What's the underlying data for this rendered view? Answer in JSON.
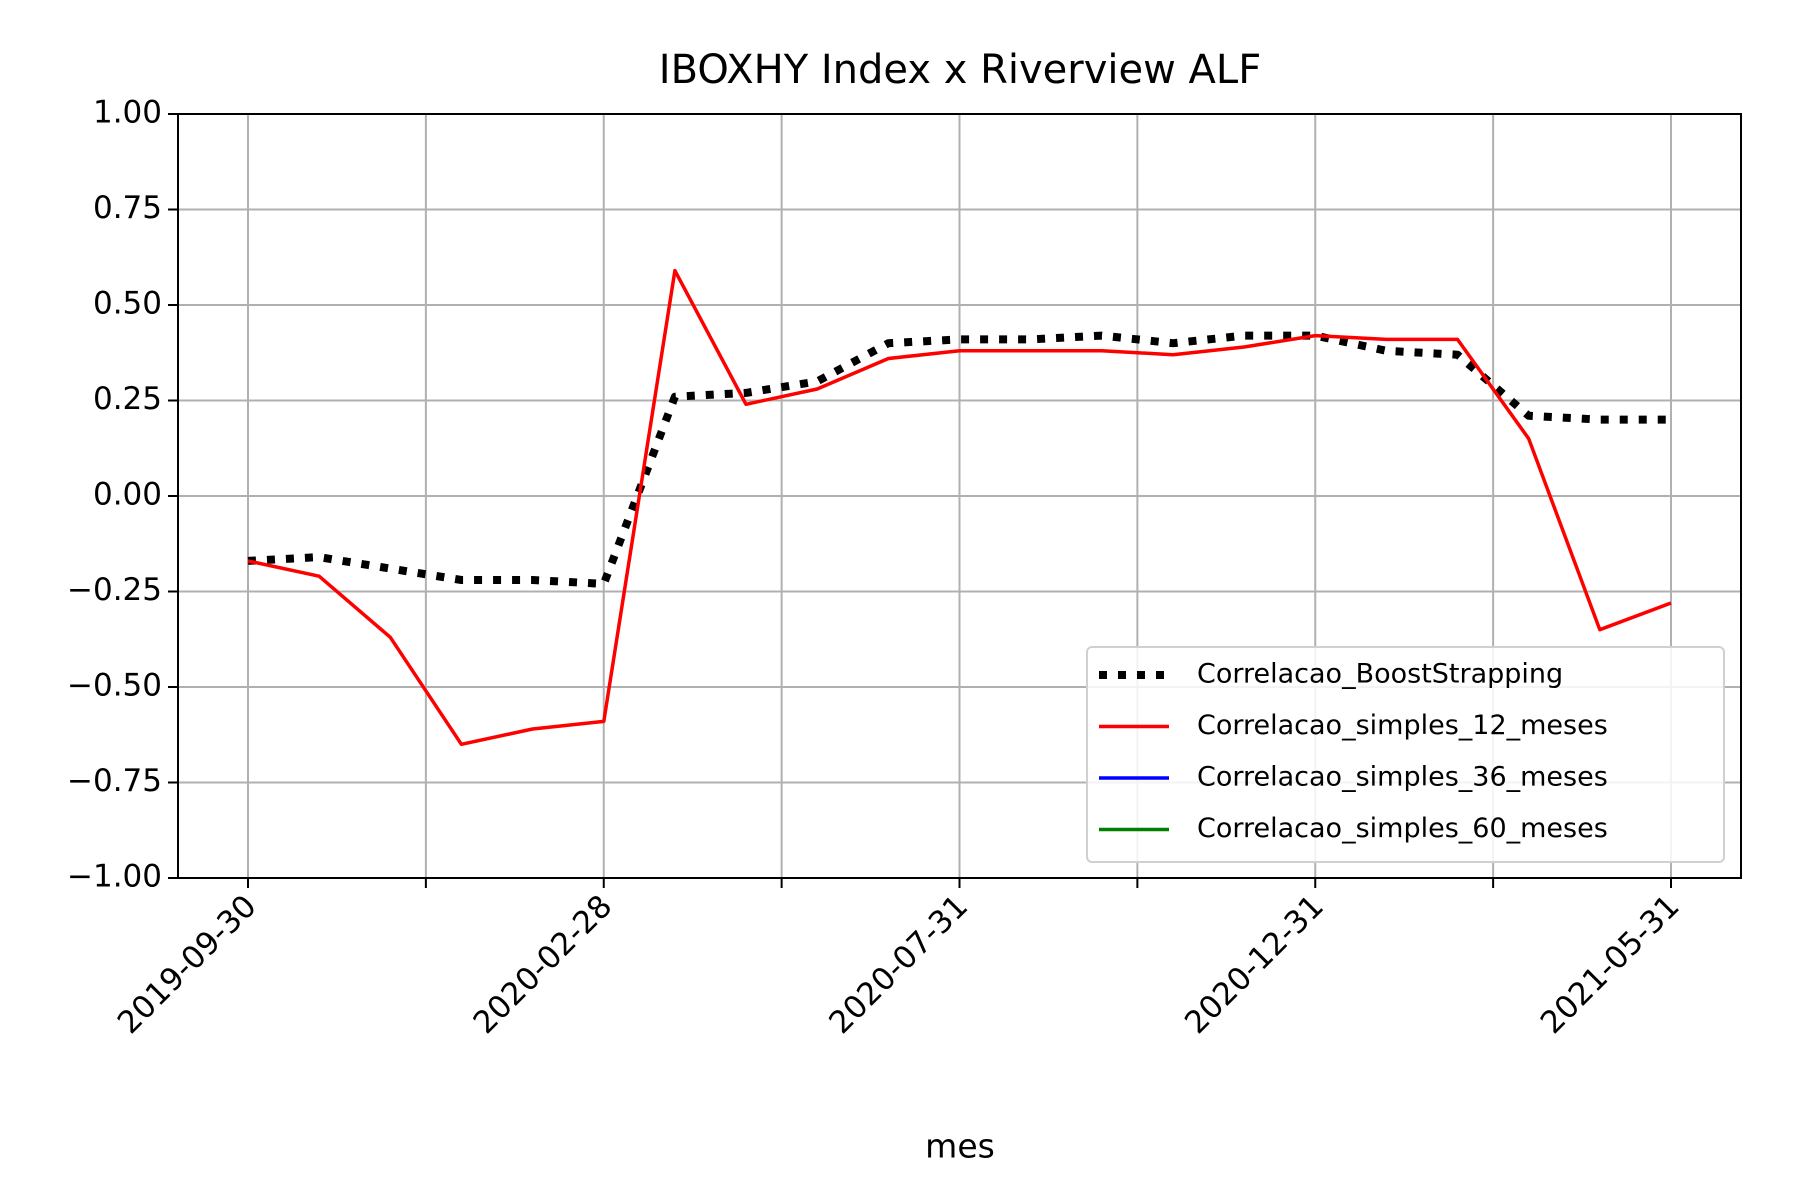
{
  "chart_data": {
    "type": "line",
    "title": "IBOXHY Index x Riverview ALF",
    "x_label": "mes",
    "categories": [
      "2019-09-30",
      null,
      null,
      null,
      null,
      "2020-02-28",
      null,
      null,
      null,
      null,
      "2020-07-31",
      null,
      null,
      null,
      null,
      "2020-12-31",
      null,
      null,
      null,
      null,
      "2021-05-31"
    ],
    "series": [
      {
        "name": "Correlacao_BoostStrapping",
        "color": "#000000",
        "style": "dotted",
        "values": [
          -0.17,
          -0.16,
          -0.19,
          -0.22,
          -0.22,
          -0.23,
          0.26,
          0.27,
          0.3,
          0.4,
          0.41,
          0.41,
          0.42,
          0.4,
          0.42,
          0.42,
          0.38,
          0.37,
          0.21,
          0.2,
          0.2
        ]
      },
      {
        "name": "Correlacao_simples_12_meses",
        "color": "#ff0000",
        "style": "solid",
        "values": [
          -0.17,
          -0.21,
          -0.37,
          -0.65,
          -0.61,
          -0.59,
          0.59,
          0.24,
          0.28,
          0.36,
          0.38,
          0.38,
          0.38,
          0.37,
          0.39,
          0.42,
          0.41,
          0.41,
          0.15,
          -0.35,
          -0.28
        ]
      },
      {
        "name": "Correlacao_simples_36_meses",
        "color": "#0000ff",
        "style": "solid",
        "values": [
          null,
          null,
          null,
          null,
          null,
          null,
          null,
          null,
          null,
          null,
          null,
          null,
          null,
          null,
          null,
          null,
          null,
          null,
          null,
          null,
          null
        ]
      },
      {
        "name": "Correlacao_simples_60_meses",
        "color": "#008000",
        "style": "solid",
        "values": [
          null,
          null,
          null,
          null,
          null,
          null,
          null,
          null,
          null,
          null,
          null,
          null,
          null,
          null,
          null,
          null,
          null,
          null,
          null,
          null,
          null
        ]
      }
    ],
    "ylim": [
      -1,
      1
    ],
    "yticks": [
      {
        "value": -1,
        "label": "−1.00"
      },
      {
        "value": -0.75,
        "label": "−0.75"
      },
      {
        "value": -0.5,
        "label": "−0.50"
      },
      {
        "value": -0.25,
        "label": "−0.25"
      },
      {
        "value": 0,
        "label": "0.00"
      },
      {
        "value": 0.25,
        "label": "0.25"
      },
      {
        "value": 0.5,
        "label": "0.50"
      },
      {
        "value": 0.75,
        "label": "0.75"
      },
      {
        "value": 1,
        "label": "1.00"
      }
    ],
    "grid": true,
    "legend": "lower right"
  }
}
